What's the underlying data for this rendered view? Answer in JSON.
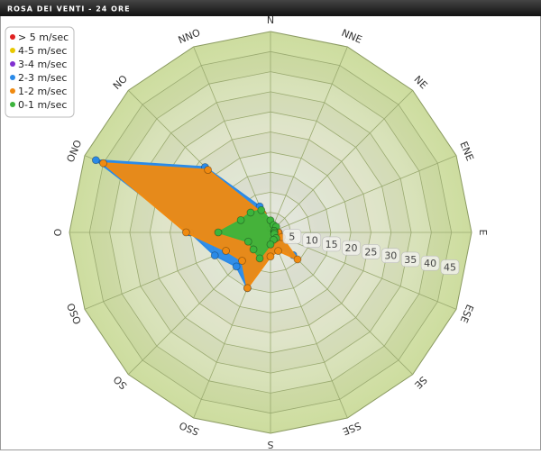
{
  "chart_data": {
    "type": "radar",
    "title": "ROSA DEI VENTI - 24 ORE",
    "categories": [
      "N",
      "NNE",
      "NE",
      "ENE",
      "E",
      "ESE",
      "SE",
      "SSE",
      "S",
      "SSO",
      "SO",
      "OSO",
      "O",
      "ONO",
      "NO",
      "NNO"
    ],
    "ylim": [
      0,
      50
    ],
    "yticks": [
      5,
      10,
      15,
      20,
      25,
      30,
      35,
      40,
      45
    ],
    "legend": "top-left",
    "series": [
      {
        "name": "> 5 m/sec",
        "color": "#e02020",
        "values": [
          0,
          0,
          0,
          0,
          0,
          0,
          0,
          0,
          0,
          0,
          0,
          0,
          0,
          0,
          0,
          0
        ]
      },
      {
        "name": "4-5 m/sec",
        "color": "#e8c800",
        "values": [
          0,
          0,
          0,
          0,
          0,
          0,
          0,
          0,
          0,
          0,
          0,
          0,
          0,
          0,
          0,
          0
        ]
      },
      {
        "name": "3-4 m/sec",
        "color": "#8030d0",
        "values": [
          0,
          0,
          0,
          0,
          0,
          0,
          0,
          0,
          0,
          0,
          0,
          0,
          0,
          0,
          0,
          0
        ]
      },
      {
        "name": "2-3 m/sec",
        "color": "#2a8ae8",
        "values": [
          1,
          1,
          1,
          1,
          2,
          3,
          8,
          4,
          5,
          15,
          12,
          15,
          20,
          47,
          23,
          7
        ]
      },
      {
        "name": "1-2 m/sec",
        "color": "#f08a10",
        "values": [
          1,
          1,
          1,
          1,
          2,
          3,
          9.5,
          5,
          6,
          15,
          10,
          12,
          21,
          45,
          22,
          5
        ]
      },
      {
        "name": "0-1 m/sec",
        "color": "#3cb43c",
        "values": [
          3,
          2,
          2,
          1,
          1,
          1,
          2,
          2,
          3,
          7,
          6,
          6,
          13,
          8,
          7,
          6
        ]
      }
    ]
  }
}
